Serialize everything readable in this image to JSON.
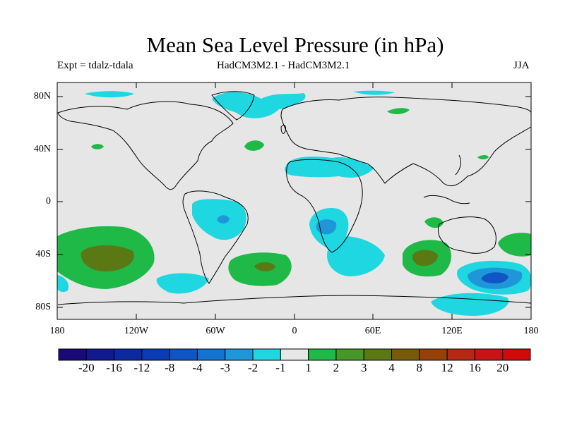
{
  "title": "Mean Sea Level Pressure (in hPa)",
  "subtitle_left": "Expt = tdalz-tdala",
  "subtitle_center": "HadCM3M2.1 - HadCM3M2.1",
  "subtitle_right": "JJA",
  "lat_labels": [
    "80N",
    "40N",
    "0",
    "40S",
    "80S"
  ],
  "lon_labels": [
    "180",
    "120W",
    "60W",
    "0",
    "60E",
    "120E",
    "180"
  ],
  "colorbar": {
    "labels": [
      "-20",
      "-16",
      "-12",
      "-8",
      "-4",
      "-3",
      "-2",
      "-1",
      "1",
      "2",
      "3",
      "4",
      "8",
      "12",
      "16",
      "20"
    ],
    "colors": [
      "#1a0a78",
      "#111a8c",
      "#0a2aa0",
      "#0a3cb4",
      "#0f55c3",
      "#1473cf",
      "#1e96d8",
      "#1ed7e0",
      "#e6e6e6",
      "#1eb946",
      "#469628",
      "#5a7814",
      "#785a0a",
      "#96410a",
      "#b42814",
      "#c81414",
      "#d20a0a"
    ]
  },
  "colors": {
    "background_field": "#e6e6e6",
    "coast": "#000000"
  }
}
